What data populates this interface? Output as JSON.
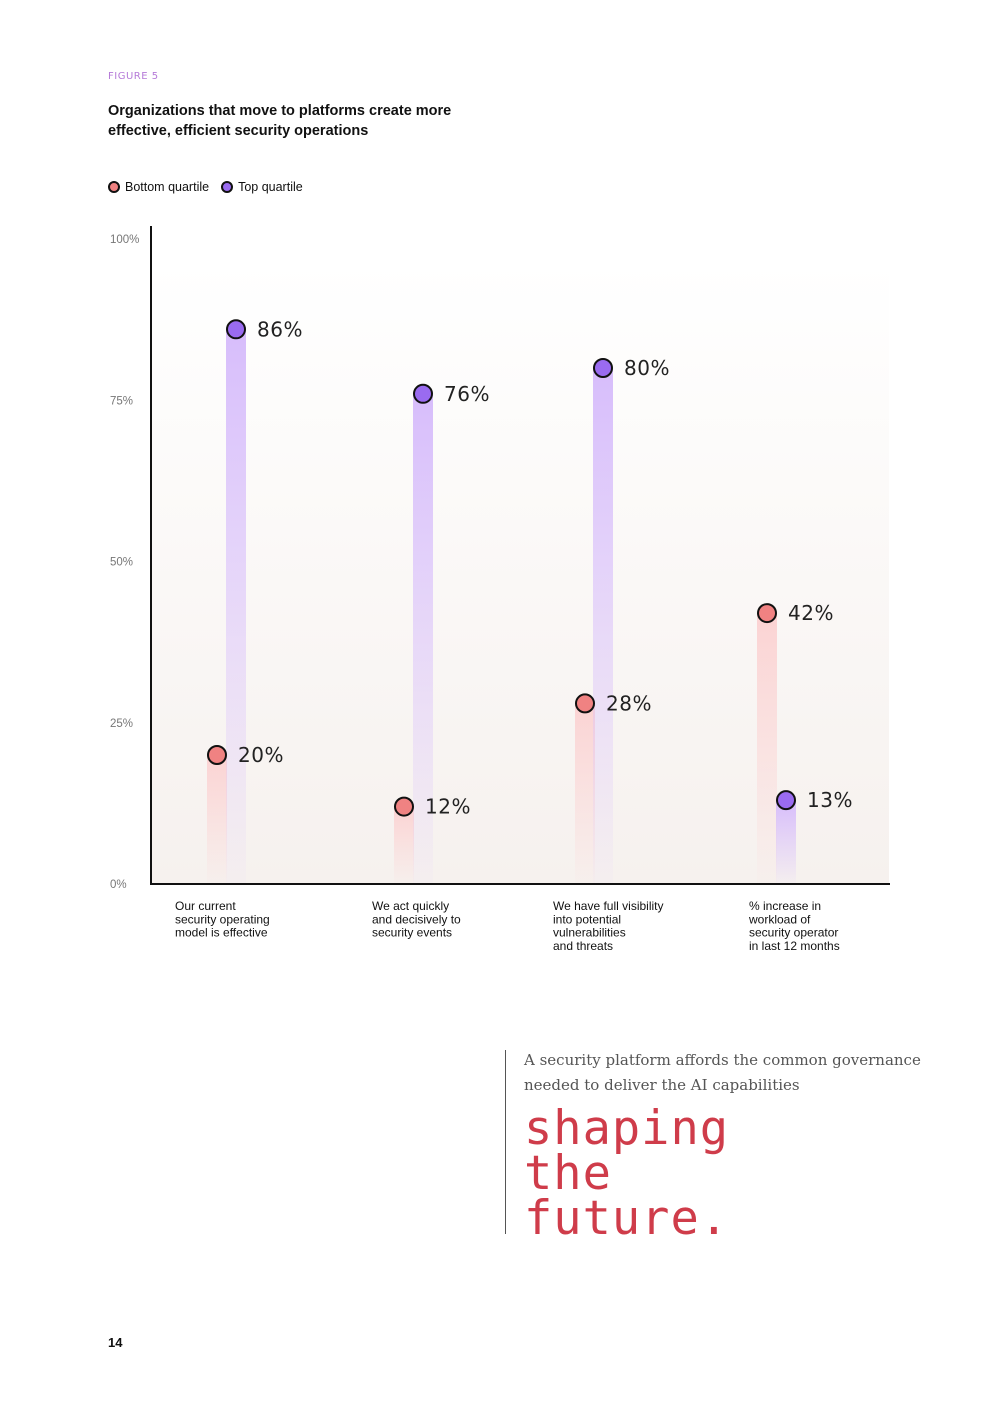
{
  "figure_label": "FIGURE 5",
  "title": "Organizations that move to platforms create more effective, efficient security operations",
  "legend": {
    "bottom": "Bottom quartile",
    "top": "Top quartile"
  },
  "colors": {
    "bottom": "#f08282",
    "top": "#9a6bf0",
    "bottom_bar": "#fbd3d3",
    "top_bar": "#d7bdfb",
    "accent": "#cf3c4a"
  },
  "chart_data": {
    "type": "scatter",
    "title": "Organizations that move to platforms create more effective, efficient security operations",
    "categories": [
      [
        "Our current",
        "security operating",
        "model is effective"
      ],
      [
        "We act quickly",
        "and decisively to",
        "security events"
      ],
      [
        "We have full visibility",
        "into potential",
        "vulnerabilities",
        "and threats"
      ],
      [
        "% increase in",
        "workload of",
        "security operator",
        "in last 12 months"
      ]
    ],
    "series": [
      {
        "name": "Bottom quartile",
        "values": [
          20,
          12,
          28,
          42
        ],
        "labels": [
          "20%",
          "12%",
          "28%",
          "42%"
        ]
      },
      {
        "name": "Top quartile",
        "values": [
          86,
          76,
          80,
          13
        ],
        "labels": [
          "86%",
          "76%",
          "80%",
          "13%"
        ]
      }
    ],
    "yticks": [
      "0%",
      "25%",
      "50%",
      "75%",
      "100%"
    ],
    "ylim": [
      0,
      100
    ],
    "xlabel": "",
    "ylabel": "",
    "legend_position": "top-left"
  },
  "quote": {
    "text": "A security platform affords the common governance needed to deliver the AI capabilities",
    "heading_lines": [
      "shaping",
      "the",
      "future."
    ]
  },
  "page_number": "14"
}
